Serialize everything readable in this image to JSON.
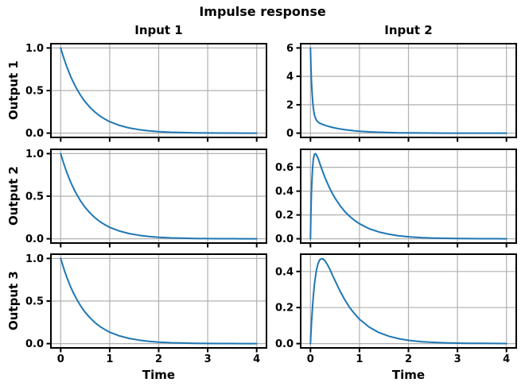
{
  "figure": {
    "title": "Impulse response",
    "xlabel": "Time",
    "background_color": "#ffffff",
    "line_color": "#1f77b4",
    "grid_color": "#b0b0b0",
    "spine_color": "#000000",
    "text_color": "#000000"
  },
  "columns": [
    {
      "label": "Input 1"
    },
    {
      "label": "Input 2"
    }
  ],
  "rows": [
    {
      "label": "Output 1"
    },
    {
      "label": "Output 2"
    },
    {
      "label": "Output 3"
    }
  ],
  "chart_data": [
    {
      "type": "line",
      "output": "Output 1",
      "input": "Input 1",
      "xlim": [
        -0.2,
        4.2
      ],
      "ylim": [
        -0.05,
        1.05
      ],
      "xticks": [
        0,
        1,
        2,
        3,
        4
      ],
      "xtick_labels": [
        "0",
        "1",
        "2",
        "3",
        "4"
      ],
      "show_xtick_labels": false,
      "yticks": [
        0,
        0.5,
        1.0
      ],
      "ytick_labels": [
        "0.0",
        "0.5",
        "1.0"
      ],
      "grid": true,
      "x": [
        0,
        0.01,
        0.02,
        0.03,
        0.045,
        0.06,
        0.08,
        0.1,
        0.125,
        0.15,
        0.175,
        0.2,
        0.25,
        0.3,
        0.35,
        0.4,
        0.45,
        0.5,
        0.6,
        0.7,
        0.8,
        0.9,
        1.0,
        1.2,
        1.4,
        1.6,
        1.8,
        2.0,
        2.25,
        2.5,
        2.75,
        3.0,
        3.25,
        3.5,
        3.75,
        4.0
      ],
      "y": [
        1.0,
        0.98,
        0.961,
        0.942,
        0.914,
        0.887,
        0.852,
        0.819,
        0.779,
        0.741,
        0.705,
        0.67,
        0.607,
        0.549,
        0.497,
        0.449,
        0.407,
        0.368,
        0.301,
        0.247,
        0.202,
        0.165,
        0.135,
        0.091,
        0.061,
        0.041,
        0.027,
        0.018,
        0.011,
        0.007,
        0.004,
        0.0025,
        0.0015,
        0.001,
        0.0006,
        0.0003
      ]
    },
    {
      "type": "line",
      "output": "Output 1",
      "input": "Input 2",
      "xlim": [
        -0.2,
        4.2
      ],
      "ylim": [
        -0.3,
        6.3
      ],
      "xticks": [
        0,
        1,
        2,
        3,
        4
      ],
      "xtick_labels": [
        "0",
        "1",
        "2",
        "3",
        "4"
      ],
      "show_xtick_labels": false,
      "yticks": [
        0,
        2,
        4,
        6
      ],
      "ytick_labels": [
        "0",
        "2",
        "4",
        "6"
      ],
      "grid": true,
      "x": [
        0,
        0.01,
        0.02,
        0.03,
        0.045,
        0.06,
        0.08,
        0.1,
        0.125,
        0.15,
        0.175,
        0.2,
        0.25,
        0.3,
        0.35,
        0.4,
        0.45,
        0.5,
        0.6,
        0.7,
        0.8,
        0.9,
        1.0,
        1.2,
        1.4,
        1.6,
        1.8,
        2.0,
        2.25,
        2.5,
        2.75,
        3.0,
        3.25,
        3.5,
        3.75,
        4.0
      ],
      "y": [
        6.0,
        4.684,
        3.705,
        2.975,
        2.21,
        1.713,
        1.306,
        1.068,
        0.897,
        0.796,
        0.731,
        0.683,
        0.609,
        0.549,
        0.497,
        0.449,
        0.407,
        0.368,
        0.301,
        0.247,
        0.202,
        0.165,
        0.135,
        0.091,
        0.061,
        0.041,
        0.027,
        0.018,
        0.011,
        0.007,
        0.004,
        0.0025,
        0.0015,
        0.001,
        0.0006,
        0.0003
      ]
    },
    {
      "type": "line",
      "output": "Output 2",
      "input": "Input 1",
      "xlim": [
        -0.2,
        4.2
      ],
      "ylim": [
        -0.05,
        1.05
      ],
      "xticks": [
        0,
        1,
        2,
        3,
        4
      ],
      "xtick_labels": [
        "0",
        "1",
        "2",
        "3",
        "4"
      ],
      "show_xtick_labels": false,
      "yticks": [
        0,
        0.5,
        1.0
      ],
      "ytick_labels": [
        "0.0",
        "0.5",
        "1.0"
      ],
      "grid": true,
      "x": [
        0,
        0.01,
        0.02,
        0.03,
        0.045,
        0.06,
        0.08,
        0.1,
        0.125,
        0.15,
        0.175,
        0.2,
        0.25,
        0.3,
        0.35,
        0.4,
        0.45,
        0.5,
        0.6,
        0.7,
        0.8,
        0.9,
        1.0,
        1.2,
        1.4,
        1.6,
        1.8,
        2.0,
        2.25,
        2.5,
        2.75,
        3.0,
        3.25,
        3.5,
        3.75,
        4.0
      ],
      "y": [
        1.0,
        0.98,
        0.961,
        0.942,
        0.914,
        0.887,
        0.852,
        0.819,
        0.779,
        0.741,
        0.705,
        0.67,
        0.607,
        0.549,
        0.497,
        0.449,
        0.407,
        0.368,
        0.301,
        0.247,
        0.202,
        0.165,
        0.135,
        0.091,
        0.061,
        0.041,
        0.027,
        0.018,
        0.011,
        0.007,
        0.004,
        0.0025,
        0.0015,
        0.001,
        0.0006,
        0.0003
      ]
    },
    {
      "type": "line",
      "output": "Output 2",
      "input": "Input 2",
      "xlim": [
        -0.2,
        4.2
      ],
      "ylim": [
        -0.036,
        0.751
      ],
      "xticks": [
        0,
        1,
        2,
        3,
        4
      ],
      "xtick_labels": [
        "0",
        "1",
        "2",
        "3",
        "4"
      ],
      "show_xtick_labels": false,
      "yticks": [
        0,
        0.2,
        0.4,
        0.6
      ],
      "ytick_labels": [
        "0.0",
        "0.2",
        "0.4",
        "0.6"
      ],
      "grid": true,
      "x": [
        0,
        0.01,
        0.02,
        0.03,
        0.045,
        0.06,
        0.08,
        0.1,
        0.125,
        0.15,
        0.175,
        0.2,
        0.25,
        0.3,
        0.35,
        0.4,
        0.45,
        0.5,
        0.6,
        0.7,
        0.8,
        0.9,
        1.0,
        1.2,
        1.4,
        1.6,
        1.8,
        2.0,
        2.25,
        2.5,
        2.75,
        3.0,
        3.25,
        3.5,
        3.75,
        4.0
      ],
      "y": [
        0,
        0.223,
        0.383,
        0.498,
        0.609,
        0.671,
        0.708,
        0.715,
        0.702,
        0.679,
        0.651,
        0.621,
        0.564,
        0.51,
        0.462,
        0.418,
        0.378,
        0.342,
        0.28,
        0.229,
        0.188,
        0.154,
        0.126,
        0.084,
        0.057,
        0.038,
        0.025,
        0.017,
        0.01,
        0.006,
        0.004,
        0.002,
        0.0014,
        0.0009,
        0.0006,
        0.0003
      ]
    },
    {
      "type": "line",
      "output": "Output 3",
      "input": "Input 1",
      "xlim": [
        -0.2,
        4.2
      ],
      "ylim": [
        -0.05,
        1.05
      ],
      "xticks": [
        0,
        1,
        2,
        3,
        4
      ],
      "xtick_labels": [
        "0",
        "1",
        "2",
        "3",
        "4"
      ],
      "show_xtick_labels": true,
      "yticks": [
        0,
        0.5,
        1.0
      ],
      "ytick_labels": [
        "0.0",
        "0.5",
        "1.0"
      ],
      "grid": true,
      "x": [
        0,
        0.01,
        0.02,
        0.03,
        0.045,
        0.06,
        0.08,
        0.1,
        0.125,
        0.15,
        0.175,
        0.2,
        0.25,
        0.3,
        0.35,
        0.4,
        0.45,
        0.5,
        0.6,
        0.7,
        0.8,
        0.9,
        1.0,
        1.2,
        1.4,
        1.6,
        1.8,
        2.0,
        2.25,
        2.5,
        2.75,
        3.0,
        3.25,
        3.5,
        3.75,
        4.0
      ],
      "y": [
        1.0,
        0.98,
        0.961,
        0.942,
        0.914,
        0.887,
        0.852,
        0.819,
        0.779,
        0.741,
        0.705,
        0.67,
        0.607,
        0.549,
        0.497,
        0.449,
        0.407,
        0.368,
        0.301,
        0.247,
        0.202,
        0.165,
        0.135,
        0.091,
        0.061,
        0.041,
        0.027,
        0.018,
        0.011,
        0.007,
        0.004,
        0.0025,
        0.0015,
        0.001,
        0.0006,
        0.0003
      ]
    },
    {
      "type": "line",
      "output": "Output 3",
      "input": "Input 2",
      "xlim": [
        -0.2,
        4.2
      ],
      "ylim": [
        -0.024,
        0.496
      ],
      "xticks": [
        0,
        1,
        2,
        3,
        4
      ],
      "xtick_labels": [
        "0",
        "1",
        "2",
        "3",
        "4"
      ],
      "show_xtick_labels": true,
      "yticks": [
        0,
        0.2,
        0.4
      ],
      "ytick_labels": [
        "0.0",
        "0.2",
        "0.4"
      ],
      "grid": true,
      "x": [
        0,
        0.01,
        0.02,
        0.03,
        0.045,
        0.06,
        0.08,
        0.1,
        0.125,
        0.15,
        0.175,
        0.2,
        0.25,
        0.3,
        0.35,
        0.4,
        0.45,
        0.5,
        0.6,
        0.7,
        0.8,
        0.9,
        1.0,
        1.2,
        1.4,
        1.6,
        1.8,
        2.0,
        2.25,
        2.5,
        2.75,
        3.0,
        3.25,
        3.5,
        3.75,
        4.0
      ],
      "y": [
        0,
        0.057,
        0.109,
        0.155,
        0.216,
        0.268,
        0.325,
        0.369,
        0.411,
        0.44,
        0.458,
        0.468,
        0.471,
        0.458,
        0.436,
        0.409,
        0.379,
        0.35,
        0.293,
        0.243,
        0.2,
        0.165,
        0.135,
        0.091,
        0.061,
        0.041,
        0.027,
        0.018,
        0.011,
        0.007,
        0.004,
        0.0025,
        0.0015,
        0.001,
        0.0006,
        0.0003
      ]
    }
  ]
}
